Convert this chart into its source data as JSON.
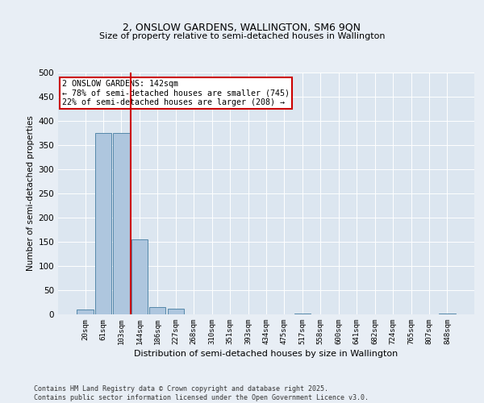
{
  "title": "2, ONSLOW GARDENS, WALLINGTON, SM6 9QN",
  "subtitle": "Size of property relative to semi-detached houses in Wallington",
  "xlabel": "Distribution of semi-detached houses by size in Wallington",
  "ylabel": "Number of semi-detached properties",
  "categories": [
    "20sqm",
    "61sqm",
    "103sqm",
    "144sqm",
    "186sqm",
    "227sqm",
    "268sqm",
    "310sqm",
    "351sqm",
    "393sqm",
    "434sqm",
    "475sqm",
    "517sqm",
    "558sqm",
    "600sqm",
    "641sqm",
    "682sqm",
    "724sqm",
    "765sqm",
    "807sqm",
    "848sqm"
  ],
  "values": [
    10,
    375,
    375,
    155,
    15,
    12,
    0,
    0,
    0,
    0,
    0,
    0,
    2,
    0,
    0,
    0,
    0,
    0,
    0,
    0,
    2
  ],
  "bar_color": "#aec6de",
  "bar_edge_color": "#5588aa",
  "vline_color": "#cc0000",
  "vline_pos": 2.5,
  "annotation_title": "2 ONSLOW GARDENS: 142sqm",
  "annotation_line1": "← 78% of semi-detached houses are smaller (745)",
  "annotation_line2": "22% of semi-detached houses are larger (208) →",
  "annotation_box_color": "#cc0000",
  "ylim": [
    0,
    500
  ],
  "yticks": [
    0,
    50,
    100,
    150,
    200,
    250,
    300,
    350,
    400,
    450,
    500
  ],
  "footer_line1": "Contains HM Land Registry data © Crown copyright and database right 2025.",
  "footer_line2": "Contains public sector information licensed under the Open Government Licence v3.0.",
  "bg_color": "#e8eef5",
  "plot_bg_color": "#dce6f0",
  "title_fontsize": 9,
  "subtitle_fontsize": 8
}
